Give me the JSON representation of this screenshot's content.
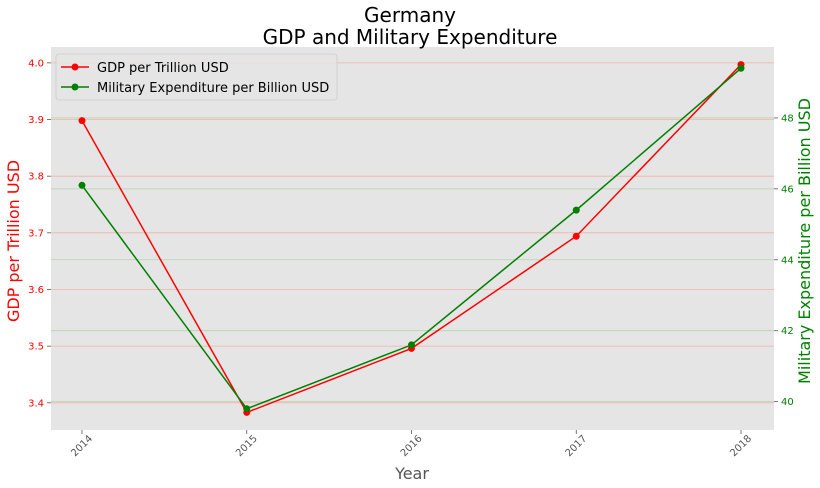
{
  "chart_data": {
    "type": "line",
    "title_line1": "Germany",
    "title_line2": "GDP and Military Expenditure",
    "xlabel": "Year",
    "x": [
      "2014",
      "2015",
      "2016",
      "2017",
      "2018"
    ],
    "series": [
      {
        "name": "GDP per Trillion USD",
        "axis": "left",
        "color": "#ff0000",
        "values": [
          3.898,
          3.383,
          3.496,
          3.694,
          3.997
        ]
      },
      {
        "name": "Military Expenditure per Billion USD",
        "axis": "right",
        "color": "#008000",
        "values": [
          46.1,
          39.8,
          41.6,
          45.4,
          49.4
        ]
      }
    ],
    "left_axis": {
      "label": "GDP per Trillion USD",
      "color": "#ff0000",
      "ticks": [
        3.4,
        3.5,
        3.6,
        3.7,
        3.8,
        3.9,
        4.0
      ],
      "tick_labels": [
        "3.4",
        "3.5",
        "3.6",
        "3.7",
        "3.8",
        "3.9",
        "4.0"
      ],
      "ylim": [
        3.352,
        4.028
      ]
    },
    "right_axis": {
      "label": "Military Expenditure per Billion USD",
      "color": "#008000",
      "ticks": [
        40,
        42,
        44,
        46,
        48
      ],
      "tick_labels": [
        "40",
        "42",
        "44",
        "46",
        "48"
      ],
      "ylim": [
        39.2,
        50.0
      ]
    },
    "grid": true,
    "legend_position": "upper-left",
    "background": "#e5e5e5"
  }
}
